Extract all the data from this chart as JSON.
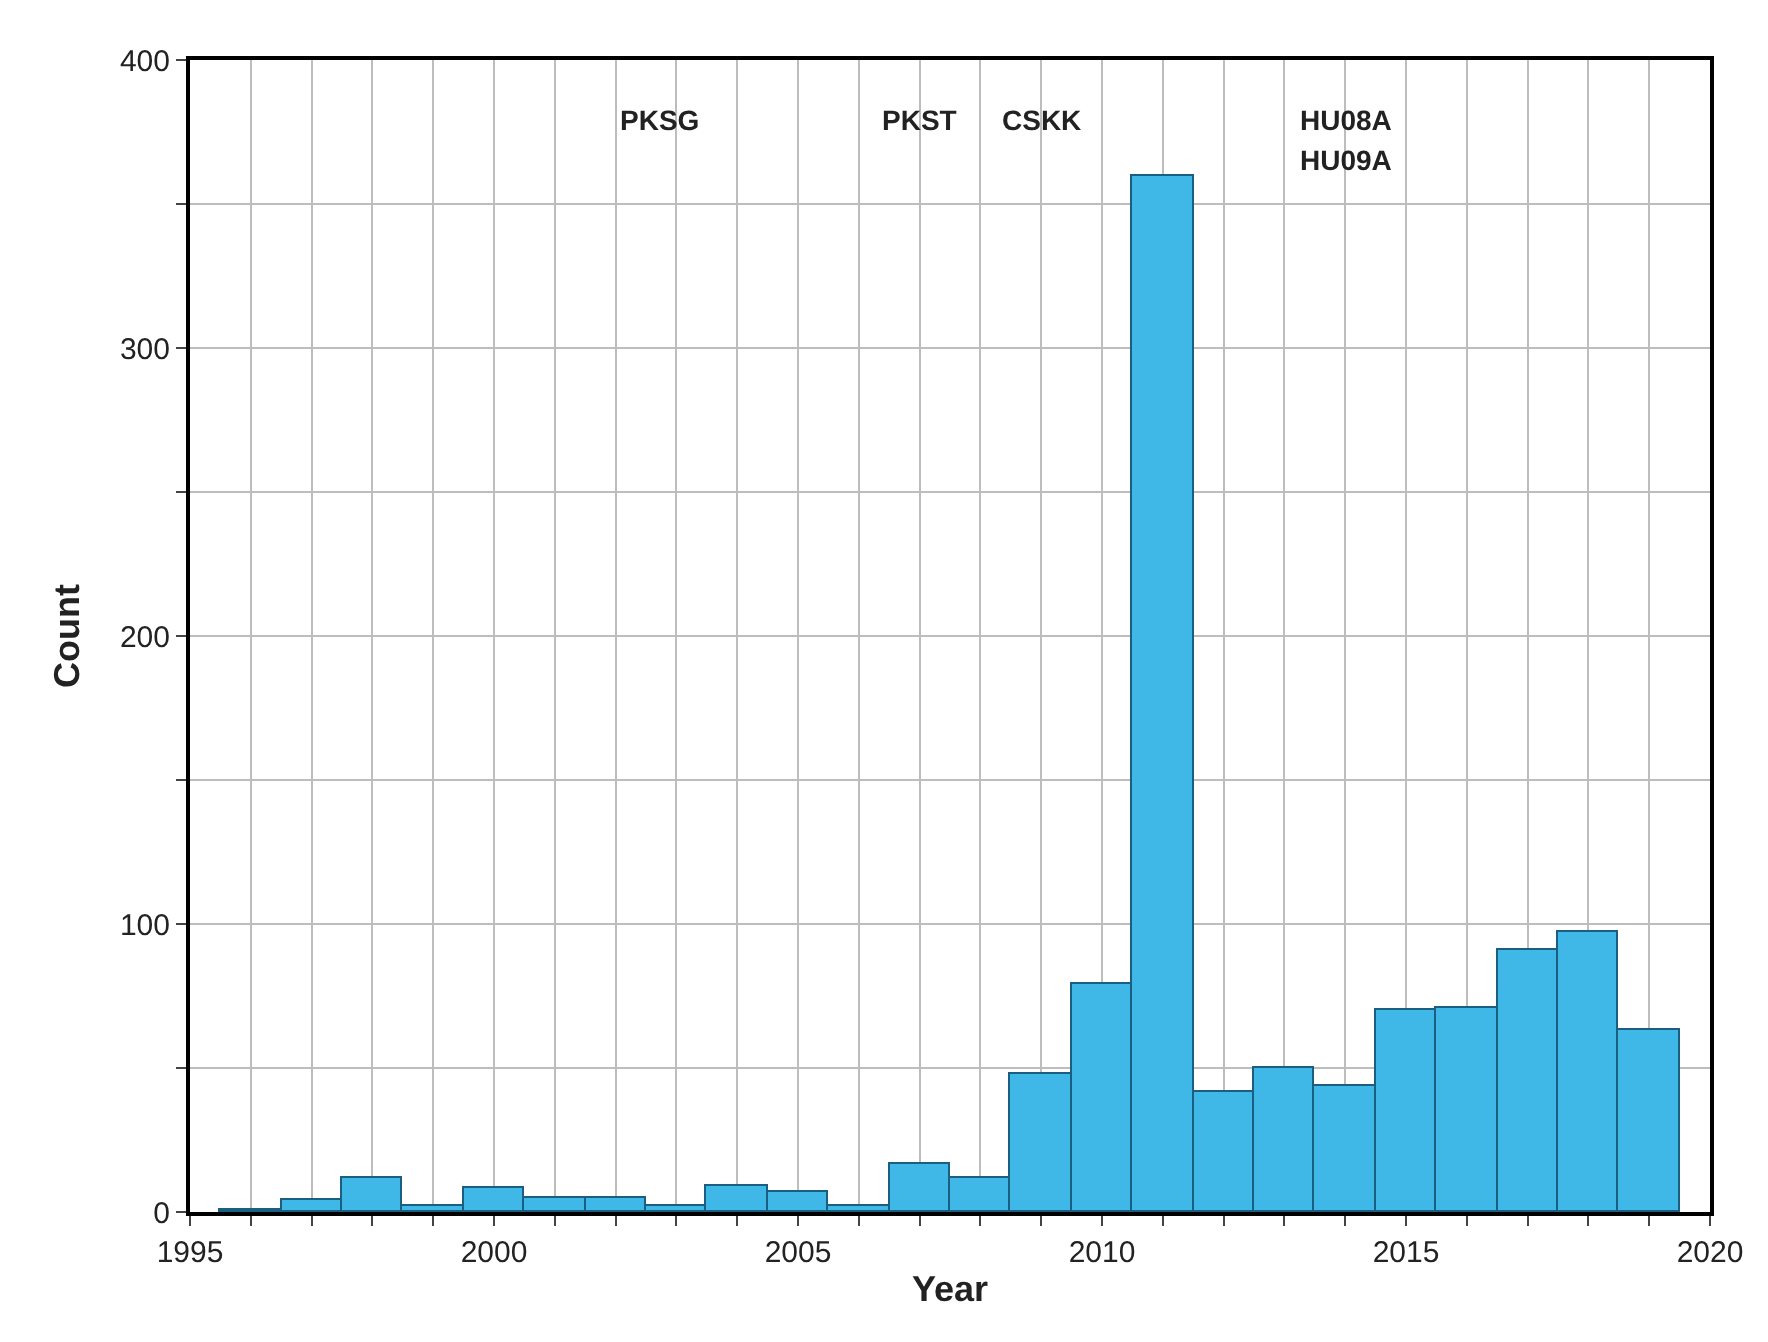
{
  "chart_data": {
    "type": "histogram",
    "xlabel": "Year",
    "ylabel": "Count",
    "bins": [
      1995.5,
      1996.5,
      1997.5,
      1998.5,
      1999.5,
      2000.5,
      2001.5,
      2002.5,
      2003.5,
      2004.5,
      2005.5,
      2006.5,
      2007.5,
      2008.5,
      2009.5,
      2010.5,
      2011.5,
      2012.5,
      2013.5,
      2014.5,
      2015.5,
      2016.5,
      2017.5,
      2018.5,
      2019.5
    ],
    "values": [
      1,
      4,
      12,
      2,
      8,
      5,
      5,
      2,
      9,
      7,
      2,
      17,
      12,
      48,
      79,
      360,
      42,
      50,
      44,
      70,
      71,
      91,
      97,
      63
    ],
    "color": "#3fb8e8",
    "xlim": [
      1995,
      2020
    ],
    "ylim": [
      0,
      400
    ],
    "xticks": [
      1995,
      {
        "value": 1996,
        "label": null
      },
      {
        "value": 1997,
        "label": null
      },
      {
        "value": 1998,
        "label": null
      },
      {
        "value": 1999,
        "label": null
      },
      2000,
      {
        "value": 2001,
        "label": null
      },
      {
        "value": 2002,
        "label": null
      },
      {
        "value": 2003,
        "label": null
      },
      {
        "value": 2004,
        "label": null
      },
      2005,
      {
        "value": 2006,
        "label": null
      },
      {
        "value": 2007,
        "label": null
      },
      {
        "value": 2008,
        "label": null
      },
      {
        "value": 2009,
        "label": null
      },
      2010,
      {
        "value": 2011,
        "label": null
      },
      {
        "value": 2012,
        "label": null
      },
      {
        "value": 2013,
        "label": null
      },
      {
        "value": 2014,
        "label": null
      },
      2015,
      {
        "value": 2016,
        "label": null
      },
      {
        "value": 2017,
        "label": null
      },
      {
        "value": 2018,
        "label": null
      },
      {
        "value": 2019,
        "label": null
      },
      2020
    ],
    "yticks": [
      0,
      {
        "value": 50,
        "label": null
      },
      100,
      {
        "value": 150,
        "label": null
      },
      200,
      {
        "value": 250,
        "label": null
      },
      300,
      {
        "value": 350,
        "label": null
      },
      400
    ],
    "grid": true,
    "annotations": [
      "PKSG",
      "PKST",
      "CSKK",
      "HU08A",
      "HU09A"
    ]
  }
}
